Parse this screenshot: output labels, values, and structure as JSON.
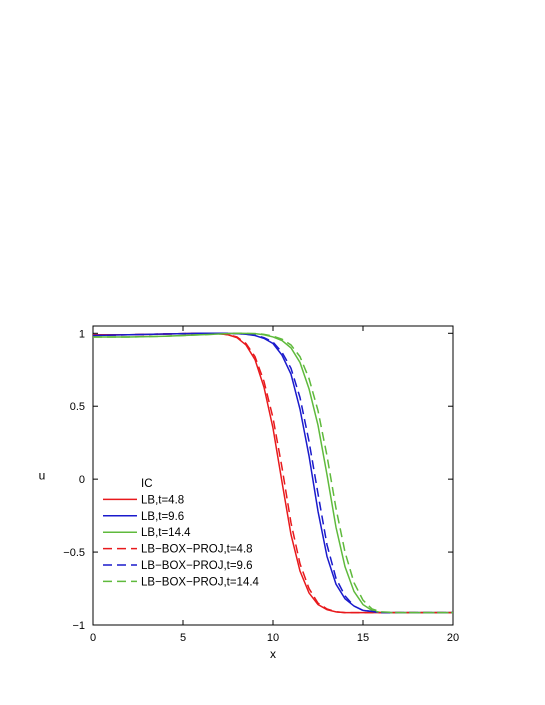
{
  "chart_data": {
    "type": "line",
    "title": "",
    "xlabel": "x",
    "ylabel": "u",
    "xlim": [
      0,
      20
    ],
    "ylim": [
      -1,
      1.05
    ],
    "x_ticks": [
      0,
      5,
      10,
      15,
      20
    ],
    "x_tick_labels": [
      "0",
      "5",
      "10",
      "15",
      "20"
    ],
    "y_ticks": [
      -1,
      -0.5,
      0,
      0.5,
      1
    ],
    "y_tick_labels": [
      "−1",
      "−0.5",
      "0",
      "0.5",
      "1"
    ],
    "grid": false,
    "legend_position": "lower-left",
    "legend_title": "IC",
    "series": [
      {
        "name": "LB,t=4.8",
        "color": "#e8191c",
        "dash": "solid",
        "x": [
          0,
          2,
          4,
          6,
          7,
          7.5,
          8,
          8.5,
          9,
          9.5,
          10,
          10.5,
          11,
          11.5,
          12,
          12.5,
          13,
          13.5,
          14,
          15,
          16,
          18,
          20
        ],
        "y": [
          0.99,
          0.99,
          0.995,
          1.0,
          0.998,
          0.99,
          0.97,
          0.92,
          0.82,
          0.63,
          0.35,
          -0.02,
          -0.38,
          -0.63,
          -0.78,
          -0.86,
          -0.895,
          -0.91,
          -0.915,
          -0.915,
          -0.915,
          -0.915,
          -0.915
        ]
      },
      {
        "name": "LB,t=9.6",
        "color": "#1a1acc",
        "dash": "solid",
        "x": [
          0,
          2,
          4,
          6,
          7,
          8,
          8.5,
          9,
          9.5,
          10,
          10.5,
          11,
          11.5,
          12,
          12.5,
          13,
          13.5,
          14,
          14.5,
          15,
          16,
          18,
          20
        ],
        "y": [
          0.985,
          0.99,
          0.995,
          1.0,
          1.0,
          0.998,
          0.993,
          0.985,
          0.965,
          0.93,
          0.85,
          0.72,
          0.48,
          0.16,
          -0.22,
          -0.53,
          -0.72,
          -0.82,
          -0.87,
          -0.9,
          -0.915,
          -0.915,
          -0.915
        ]
      },
      {
        "name": "LB,t=14.4",
        "color": "#5fba3c",
        "dash": "solid",
        "x": [
          0,
          2,
          4,
          6,
          7,
          8,
          9,
          9.5,
          10,
          10.5,
          11,
          11.5,
          12,
          12.5,
          13,
          13.5,
          14,
          14.5,
          15,
          15.5,
          16,
          18,
          20
        ],
        "y": [
          0.975,
          0.975,
          0.98,
          0.99,
          0.995,
          1.0,
          0.998,
          0.99,
          0.975,
          0.95,
          0.9,
          0.8,
          0.62,
          0.37,
          0.03,
          -0.33,
          -0.6,
          -0.77,
          -0.86,
          -0.9,
          -0.915,
          -0.915,
          -0.915
        ]
      },
      {
        "name": "LB−BOX−PROJ,t=4.8",
        "color": "#e8191c",
        "dash": "dashed",
        "x": [
          0,
          2,
          4,
          6,
          7,
          7.5,
          8,
          8.5,
          9,
          9.5,
          10,
          10.5,
          11,
          11.5,
          12,
          12.5,
          13,
          13.5,
          14,
          15,
          16,
          18,
          20
        ],
        "y": [
          0.985,
          0.99,
          0.995,
          1.0,
          0.998,
          0.99,
          0.975,
          0.93,
          0.84,
          0.67,
          0.42,
          0.08,
          -0.3,
          -0.58,
          -0.75,
          -0.85,
          -0.89,
          -0.91,
          -0.915,
          -0.915,
          -0.915,
          -0.915,
          -0.915
        ]
      },
      {
        "name": "LB−BOX−PROJ,t=9.6",
        "color": "#1a1acc",
        "dash": "dashed",
        "x": [
          0,
          2,
          4,
          6,
          7,
          8,
          8.5,
          9,
          9.5,
          10,
          10.5,
          11,
          11.5,
          12,
          12.5,
          13,
          13.5,
          14,
          14.5,
          15,
          16,
          18,
          20
        ],
        "y": [
          0.985,
          0.99,
          0.995,
          1.0,
          1.0,
          0.998,
          0.994,
          0.987,
          0.97,
          0.94,
          0.87,
          0.76,
          0.56,
          0.26,
          -0.1,
          -0.45,
          -0.68,
          -0.8,
          -0.87,
          -0.9,
          -0.915,
          -0.915,
          -0.915
        ]
      },
      {
        "name": "LB−BOX−PROJ,t=14.4",
        "color": "#5fba3c",
        "dash": "dashed",
        "x": [
          0,
          2,
          4,
          6,
          7,
          8,
          9,
          9.5,
          10,
          10.5,
          11,
          11.5,
          12,
          12.5,
          13,
          13.5,
          14,
          14.5,
          15,
          15.5,
          16,
          17,
          18,
          20
        ],
        "y": [
          0.975,
          0.975,
          0.98,
          0.99,
          0.995,
          1.0,
          0.998,
          0.993,
          0.98,
          0.96,
          0.92,
          0.84,
          0.69,
          0.47,
          0.16,
          -0.2,
          -0.5,
          -0.71,
          -0.83,
          -0.89,
          -0.91,
          -0.915,
          -0.915,
          -0.915
        ]
      }
    ]
  }
}
